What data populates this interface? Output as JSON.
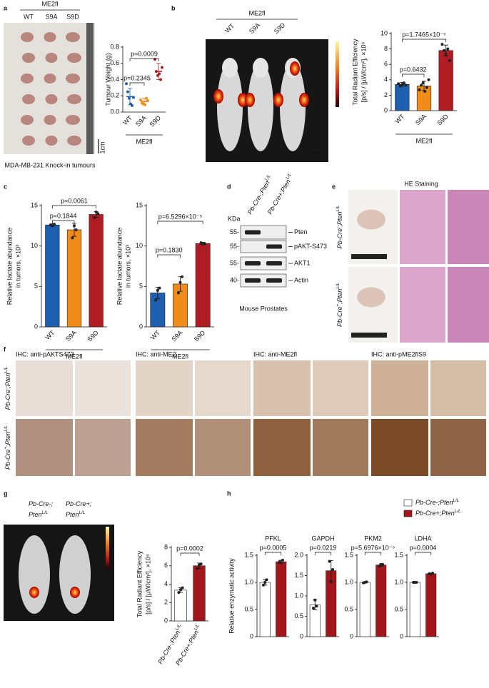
{
  "figure": {
    "panel_letters": [
      "a",
      "b",
      "c",
      "d",
      "e",
      "f",
      "g",
      "h"
    ],
    "a": {
      "group": "ME2fl",
      "columns": [
        "WT",
        "S9A",
        "S9D"
      ],
      "scale": "1cm",
      "caption": "MDA-MB-231 Knock-in tumours"
    },
    "b": {
      "group": "ME2fl",
      "columns": [
        "WT",
        "S9A",
        "S9D"
      ]
    },
    "d": {
      "kda": "KDa",
      "lanes": [
        [
          {
            "t": "Pb-Cre-;Pten"
          },
          {
            "t": "L/L",
            "sup": true
          }
        ],
        [
          {
            "t": "Pb-Cre+;Pten"
          },
          {
            "t": "L/L",
            "sup": true
          }
        ]
      ],
      "markers": [
        "55-",
        "55-",
        "55-",
        "40-"
      ],
      "bands": [
        "Pten",
        "pAKT-S473",
        "AKT1",
        "Actin"
      ],
      "caption": "Mouse Prostates"
    },
    "e": {
      "header": "HE Staining",
      "rows": [
        [
          {
            "t": "Pb-Cre"
          },
          {
            "t": "-",
            "sup": true
          },
          {
            "t": ";Pten"
          },
          {
            "t": "L/L",
            "sup": true
          }
        ],
        [
          {
            "t": "Pb-Cre"
          },
          {
            "t": "+",
            "sup": true
          },
          {
            "t": ";Pten"
          },
          {
            "t": "L/L",
            "sup": true
          }
        ]
      ]
    },
    "f": {
      "headers": [
        "IHC: anti-pAKTS473",
        "IHC: anti-ME2",
        "IHC: anti-ME2fl",
        "IHC: anti-pME2flS9"
      ],
      "rows": [
        [
          {
            "t": "Pb-Cre"
          },
          {
            "t": "-",
            "sup": true
          },
          {
            "t": ";Pten"
          },
          {
            "t": "L/L",
            "sup": true
          }
        ],
        [
          {
            "t": "Pb-Cre"
          },
          {
            "t": "+",
            "sup": true
          },
          {
            "t": ";Pten"
          },
          {
            "t": "L/L",
            "sup": true
          }
        ]
      ]
    },
    "g": {
      "columns": [
        [
          [
            {
              "t": "Pb-Cre-;"
            }
          ],
          [
            {
              "t": "Pten"
            },
            {
              "t": "L/L",
              "sup": true
            }
          ]
        ],
        [
          [
            {
              "t": "Pb-Cre+;"
            }
          ],
          [
            {
              "t": "Pten"
            },
            {
              "t": "L/L",
              "sup": true
            }
          ]
        ]
      ]
    },
    "h": {
      "legend": [
        [
          {
            "t": "Pb-Cre-;Pten"
          },
          {
            "t": "L/L",
            "sup": true
          }
        ],
        [
          {
            "t": "Pb-Cre+;Pten"
          },
          {
            "t": "L/L",
            "sup": true
          }
        ]
      ]
    }
  },
  "chart_data": [
    {
      "type": "dotplot",
      "ylabel": [
        "Tumour Weight (g)"
      ],
      "categories": [
        "WT",
        "S9A",
        "S9D"
      ],
      "values": [
        0.19,
        0.13,
        0.5
      ],
      "errors": [
        0.1,
        0.04,
        0.1
      ],
      "points": [
        [
          0.35,
          0.25,
          0.17,
          0.1,
          0.08,
          0.18
        ],
        [
          0.15,
          0.11,
          0.1,
          0.09,
          0.17,
          0.14
        ],
        [
          0.65,
          0.5,
          0.45,
          0.47,
          0.4,
          0.55
        ]
      ],
      "colors": [
        "#1f5fb0",
        "#f08c1a",
        "#b01c24"
      ],
      "ylim": [
        0,
        0.8
      ],
      "yticks": [
        {
          "value": 0,
          "label": "0.0"
        },
        0.2,
        0.4,
        0.6,
        0.8
      ],
      "group_label": "ME2fl",
      "annotations": [
        "p=0.2345",
        "p=0.0009"
      ]
    },
    {
      "type": "bar",
      "ylabel": [
        "Total Radiant Efficiency",
        "[p/s] / [µW/cm²], ×10⁹"
      ],
      "categories": [
        "WT",
        "S9A",
        "S9D"
      ],
      "values": [
        3.4,
        3.2,
        7.8
      ],
      "errors": [
        0.25,
        0.6,
        0.7
      ],
      "points": [
        [
          3.5,
          3.2,
          3.4,
          3.6,
          3.3
        ],
        [
          2.7,
          3.3,
          3.6,
          2.5,
          3.0,
          4.0
        ],
        [
          8.6,
          7.8,
          7.3,
          8.0,
          6.5
        ]
      ],
      "colors": [
        "#1f5fb0",
        "#f08c1a",
        "#b01c24"
      ],
      "point_color": "#222",
      "ylim": [
        0,
        10
      ],
      "yticks": [
        0,
        2,
        4,
        6,
        8,
        10
      ],
      "group_label": "ME2fl",
      "annotations": [
        "p=0.6432",
        "p=1.7465×10⁻⁵"
      ]
    },
    {
      "type": "bar",
      "ylabel": [
        "Relative lactate abundance",
        "in tumors, ×10³"
      ],
      "categories": [
        "WT",
        "S9A",
        "S9D"
      ],
      "values": [
        12.6,
        12.0,
        13.9
      ],
      "errors": [
        0.15,
        0.8,
        0.35
      ],
      "points": [
        [
          12.6,
          12.5,
          12.7
        ],
        [
          11.0,
          12.5,
          12.0
        ],
        [
          13.5,
          14.2,
          14.0
        ]
      ],
      "colors": [
        "#1f5fb0",
        "#f08c1a",
        "#b01c24"
      ],
      "point_color": "#222",
      "ylim": [
        0,
        15
      ],
      "yticks": [
        0,
        5,
        10,
        15
      ],
      "group_label": "ME2fl",
      "annotations": [
        "p=0.1844",
        "p=0.0061"
      ]
    },
    {
      "type": "bar",
      "ylabel": [
        "Relative lactate abundance",
        "in tumors, ×10³"
      ],
      "categories": [
        "WT",
        "S9A",
        "S9D"
      ],
      "values": [
        4.2,
        5.3,
        10.3
      ],
      "errors": [
        0.7,
        0.9,
        0.15
      ],
      "points": [
        [
          3.3,
          4.5,
          4.8
        ],
        [
          4.2,
          5.5,
          6.2
        ],
        [
          10.4,
          10.2,
          10.3
        ]
      ],
      "colors": [
        "#1f5fb0",
        "#f08c1a",
        "#b01c24"
      ],
      "point_color": "#222",
      "ylim": [
        0,
        15
      ],
      "yticks": [
        0,
        5,
        10,
        15
      ],
      "group_label": "ME2fl",
      "annotations": [
        "p=0.1830",
        "p=6.5296×10⁻⁵"
      ]
    },
    {
      "type": "bar",
      "ylabel": [
        "Total Radiant Efficiency",
        "[p/s] / [µW/cm²], ×10⁹"
      ],
      "categories": [
        [
          {
            "t": "Pb-Cre-;Pten"
          },
          {
            "t": "L/L",
            "sup": true
          }
        ],
        [
          {
            "t": "Pb-Cre+;Pten"
          },
          {
            "t": "L/L",
            "sup": true
          }
        ]
      ],
      "values": [
        3.35,
        6.0
      ],
      "errors": [
        0.25,
        0.3
      ],
      "points": [
        [
          3.1,
          3.4,
          3.6
        ],
        [
          5.7,
          6.1,
          6.2
        ]
      ],
      "colors": [
        "#ffffff",
        "#a3161c"
      ],
      "point_color": "#222",
      "ylim": [
        0,
        8
      ],
      "yticks": [
        0,
        2,
        4,
        6,
        8
      ],
      "annotations": [
        "p=0.0002"
      ]
    },
    {
      "type": "bar",
      "title": "PFKL",
      "ylabel": [
        "Relative enzymatic activity"
      ],
      "categories": [
        null,
        null
      ],
      "values": [
        1.0,
        1.38
      ],
      "errors": [
        0.05,
        0.03
      ],
      "points": [
        [
          0.95,
          1.0,
          1.05
        ],
        [
          1.38,
          1.36,
          1.41
        ]
      ],
      "colors": [
        "#ffffff",
        "#a3161c"
      ],
      "point_color": "#222",
      "ylim": [
        0,
        1.5
      ],
      "yticks": [
        0,
        0.5,
        {
          "value": 1,
          "label": "1.0"
        },
        1.5
      ],
      "annotations": [
        "p=0.0005"
      ]
    },
    {
      "type": "bar",
      "title": "GAPDH",
      "categories": [
        null,
        null
      ],
      "values": [
        0.78,
        1.62
      ],
      "errors": [
        0.12,
        0.25
      ],
      "points": [
        [
          0.7,
          0.9,
          0.75
        ],
        [
          1.85,
          1.35,
          1.65
        ]
      ],
      "colors": [
        "#ffffff",
        "#a3161c"
      ],
      "point_color": "#222",
      "ylim": [
        0,
        2
      ],
      "yticks": [
        0,
        0.5,
        {
          "value": 1,
          "label": "1.0"
        },
        1.5,
        {
          "value": 2,
          "label": "2.0"
        }
      ],
      "annotations": [
        "p=0.0219"
      ]
    },
    {
      "type": "bar",
      "title": "PKM2",
      "categories": [
        null,
        null
      ],
      "values": [
        1.0,
        1.32
      ],
      "errors": [
        0.01,
        0.02
      ],
      "points": [
        [
          0.99,
          1.0,
          1.01
        ],
        [
          1.3,
          1.33,
          1.33
        ]
      ],
      "colors": [
        "#ffffff",
        "#a3161c"
      ],
      "point_color": "#222",
      "ylim": [
        0,
        1.5
      ],
      "yticks": [
        0,
        0.5,
        {
          "value": 1,
          "label": "1.0"
        },
        1.5
      ],
      "annotations": [
        "p=5.6976×10⁻⁵"
      ]
    },
    {
      "type": "bar",
      "title": "LDHA",
      "categories": [
        null,
        null
      ],
      "values": [
        1.0,
        1.16
      ],
      "errors": [
        0.01,
        0.01
      ],
      "points": [
        [
          1.0,
          1.0,
          1.0
        ],
        [
          1.16,
          1.15,
          1.17
        ]
      ],
      "colors": [
        "#ffffff",
        "#a3161c"
      ],
      "point_color": "#222",
      "ylim": [
        0,
        1.5
      ],
      "yticks": [
        0,
        0.5,
        {
          "value": 1,
          "label": "1.0"
        },
        1.5
      ],
      "annotations": [
        "p=0.0004"
      ]
    }
  ]
}
